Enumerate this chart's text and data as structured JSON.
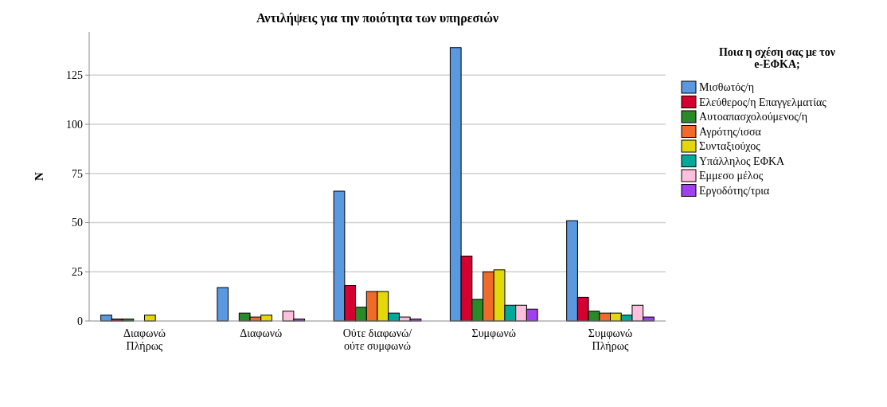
{
  "chart_data": {
    "type": "bar",
    "title": "Αντιλήψεις για την ποιότητα των υπηρεσιών",
    "ylabel": "N",
    "legend_title": "Ποια η σχέση σας με τον e-ΕΦΚΑ;",
    "categories": [
      "Διαφωνώ Πλήρως",
      "Διαφωνώ",
      "Ούτε διαφωνώ/ ούτε συμφωνώ",
      "Συμφωνώ",
      "Συμφωνώ Πλήρως"
    ],
    "series": [
      {
        "name": "Μισθωτός/η",
        "color": "#5a98e0",
        "values": [
          3,
          17,
          66,
          139,
          51
        ]
      },
      {
        "name": "Ελεύθερος/η  Επαγγελματίας",
        "color": "#d4002f",
        "values": [
          1,
          null,
          18,
          33,
          12
        ]
      },
      {
        "name": "Αυτοαπασχολούμενος/η",
        "color": "#2a8a2a",
        "values": [
          1,
          4,
          7,
          11,
          5
        ]
      },
      {
        "name": "Αγρότης/ισσα",
        "color": "#f06a2a",
        "values": [
          null,
          2,
          15,
          25,
          4
        ]
      },
      {
        "name": "Συνταξιούχος",
        "color": "#e5d80a",
        "values": [
          3,
          3,
          15,
          26,
          4
        ]
      },
      {
        "name": "Υπάλληλος ΕΦΚΑ",
        "color": "#00a99a",
        "values": [
          null,
          null,
          4,
          8,
          3
        ]
      },
      {
        "name": "Εμμεσο μέλος",
        "color": "#ffc0dd",
        "values": [
          null,
          5,
          2,
          8,
          8
        ]
      },
      {
        "name": "Εργοδότης/τρια",
        "color": "#a040f0",
        "values": [
          null,
          1,
          1,
          6,
          2
        ]
      }
    ],
    "ylim": [
      0,
      147
    ],
    "yticks": [
      0,
      25,
      50,
      75,
      100,
      125
    ],
    "grid": "y",
    "legend": "right"
  }
}
